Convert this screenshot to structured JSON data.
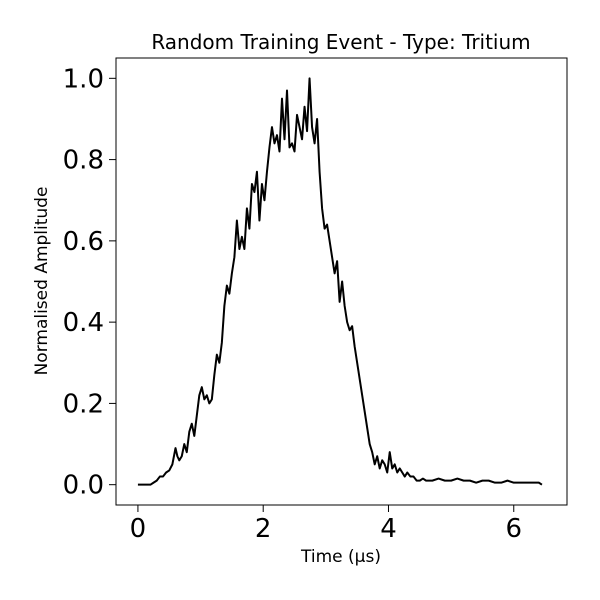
{
  "chart_data": {
    "type": "line",
    "title": "Random Training Event - Type: Tritium",
    "xlabel": "Time (μs)",
    "ylabel": "Normalised Amplitude",
    "xlim": [
      -0.35,
      6.85
    ],
    "ylim": [
      -0.05,
      1.05
    ],
    "xticks": [
      0,
      2,
      4,
      6
    ],
    "xtick_labels": [
      "0",
      "2",
      "4",
      "6"
    ],
    "yticks": [
      0.0,
      0.2,
      0.4,
      0.6,
      0.8,
      1.0
    ],
    "ytick_labels": [
      "0.0",
      "0.2",
      "0.4",
      "0.6",
      "0.8",
      "1.0"
    ],
    "grid": false,
    "legend": "none",
    "line_color": "#000000",
    "series": [
      {
        "x": [
          0.0,
          0.1,
          0.2,
          0.25,
          0.3,
          0.35,
          0.4,
          0.45,
          0.5,
          0.55,
          0.6,
          0.63,
          0.66,
          0.7,
          0.74,
          0.78,
          0.82,
          0.86,
          0.9,
          0.94,
          0.98,
          1.02,
          1.06,
          1.1,
          1.14,
          1.18,
          1.22,
          1.26,
          1.3,
          1.34,
          1.38,
          1.42,
          1.46,
          1.5,
          1.54,
          1.58,
          1.62,
          1.66,
          1.7,
          1.74,
          1.78,
          1.82,
          1.86,
          1.9,
          1.94,
          1.98,
          2.02,
          2.06,
          2.1,
          2.14,
          2.18,
          2.22,
          2.26,
          2.3,
          2.34,
          2.38,
          2.42,
          2.46,
          2.5,
          2.54,
          2.58,
          2.62,
          2.66,
          2.7,
          2.74,
          2.78,
          2.82,
          2.86,
          2.9,
          2.94,
          2.98,
          3.02,
          3.06,
          3.1,
          3.14,
          3.18,
          3.22,
          3.26,
          3.3,
          3.34,
          3.38,
          3.42,
          3.46,
          3.5,
          3.54,
          3.58,
          3.62,
          3.66,
          3.7,
          3.74,
          3.78,
          3.82,
          3.86,
          3.9,
          3.94,
          3.98,
          4.02,
          4.06,
          4.1,
          4.14,
          4.18,
          4.22,
          4.26,
          4.3,
          4.35,
          4.4,
          4.45,
          4.5,
          4.55,
          4.6,
          4.7,
          4.8,
          4.9,
          5.0,
          5.1,
          5.2,
          5.3,
          5.4,
          5.5,
          5.6,
          5.7,
          5.8,
          5.9,
          6.0,
          6.1,
          6.2,
          6.3,
          6.4,
          6.45
        ],
        "y": [
          0.0,
          0.0,
          0.0,
          0.005,
          0.01,
          0.02,
          0.02,
          0.03,
          0.035,
          0.05,
          0.09,
          0.07,
          0.06,
          0.07,
          0.1,
          0.08,
          0.13,
          0.15,
          0.12,
          0.17,
          0.22,
          0.24,
          0.21,
          0.22,
          0.2,
          0.21,
          0.27,
          0.32,
          0.3,
          0.35,
          0.44,
          0.49,
          0.47,
          0.52,
          0.56,
          0.65,
          0.58,
          0.61,
          0.58,
          0.68,
          0.63,
          0.74,
          0.72,
          0.77,
          0.65,
          0.74,
          0.7,
          0.77,
          0.83,
          0.88,
          0.84,
          0.86,
          0.82,
          0.95,
          0.85,
          0.97,
          0.83,
          0.84,
          0.82,
          0.91,
          0.88,
          0.85,
          0.93,
          0.87,
          1.0,
          0.88,
          0.84,
          0.9,
          0.77,
          0.68,
          0.63,
          0.64,
          0.6,
          0.56,
          0.52,
          0.55,
          0.45,
          0.5,
          0.44,
          0.4,
          0.38,
          0.39,
          0.34,
          0.3,
          0.26,
          0.22,
          0.18,
          0.14,
          0.1,
          0.08,
          0.05,
          0.07,
          0.04,
          0.06,
          0.05,
          0.03,
          0.08,
          0.04,
          0.05,
          0.03,
          0.04,
          0.03,
          0.02,
          0.03,
          0.02,
          0.02,
          0.01,
          0.01,
          0.015,
          0.01,
          0.01,
          0.015,
          0.01,
          0.01,
          0.015,
          0.01,
          0.01,
          0.005,
          0.01,
          0.01,
          0.005,
          0.005,
          0.01,
          0.005,
          0.005,
          0.005,
          0.005,
          0.005,
          0.0
        ]
      }
    ]
  }
}
